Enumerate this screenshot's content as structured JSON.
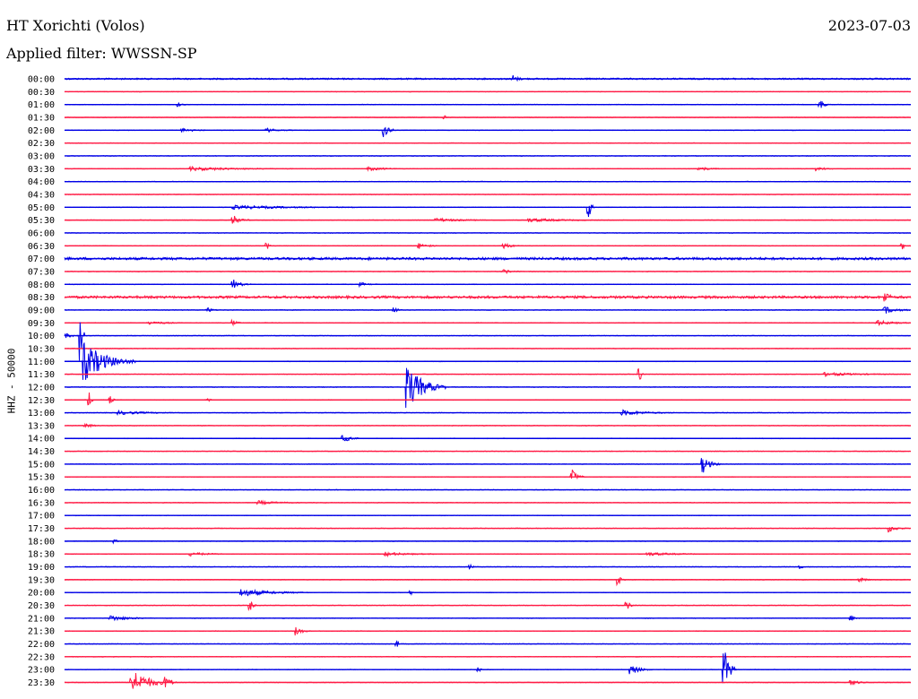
{
  "header": {
    "station": "HT Xorichti (Volos)",
    "date": "2023-07-03",
    "filter": "Applied filter: WWSSN-SP"
  },
  "chart_data": {
    "type": "line",
    "subtype": "helicorder",
    "ylabel": "HHZ - 50000",
    "colors": {
      "even": "#0000e6",
      "odd": "#ff1a44"
    },
    "lines": [
      {
        "label": "00:00",
        "events": [
          {
            "x": 0.53,
            "amp": 4,
            "dur": 0.012
          },
          {
            "x": 0.01,
            "amp": 1,
            "dur": 0.9
          }
        ]
      },
      {
        "label": "00:30",
        "events": []
      },
      {
        "label": "01:00",
        "events": [
          {
            "x": 0.135,
            "amp": 2,
            "dur": 0.01
          },
          {
            "x": 0.893,
            "amp": 7,
            "dur": 0.01
          }
        ]
      },
      {
        "label": "01:30",
        "events": [
          {
            "x": 0.45,
            "amp": 2,
            "dur": 0.004
          }
        ]
      },
      {
        "label": "02:00",
        "events": [
          {
            "x": 0.14,
            "amp": 2,
            "dur": 0.03
          },
          {
            "x": 0.24,
            "amp": 2,
            "dur": 0.03
          },
          {
            "x": 0.378,
            "amp": 11,
            "dur": 0.012
          }
        ]
      },
      {
        "label": "02:30",
        "events": []
      },
      {
        "label": "03:00",
        "events": []
      },
      {
        "label": "03:30",
        "events": [
          {
            "x": 0.15,
            "amp": 2,
            "dur": 0.12
          },
          {
            "x": 0.36,
            "amp": 2,
            "dur": 0.04
          },
          {
            "x": 0.75,
            "amp": 2,
            "dur": 0.03
          },
          {
            "x": 0.89,
            "amp": 2,
            "dur": 0.02
          }
        ]
      },
      {
        "label": "04:00",
        "events": []
      },
      {
        "label": "04:30",
        "events": []
      },
      {
        "label": "05:00",
        "events": [
          {
            "x": 0.2,
            "amp": 2,
            "dur": 0.15
          },
          {
            "x": 0.62,
            "amp": 12,
            "dur": 0.006
          }
        ]
      },
      {
        "label": "05:30",
        "events": [
          {
            "x": 0.2,
            "amp": 5,
            "dur": 0.02
          },
          {
            "x": 0.44,
            "amp": 2,
            "dur": 0.06
          },
          {
            "x": 0.55,
            "amp": 2,
            "dur": 0.08
          }
        ]
      },
      {
        "label": "06:00",
        "events": []
      },
      {
        "label": "06:30",
        "events": [
          {
            "x": 0.24,
            "amp": 3,
            "dur": 0.004
          },
          {
            "x": 0.42,
            "amp": 3,
            "dur": 0.02
          },
          {
            "x": 0.52,
            "amp": 3,
            "dur": 0.02
          },
          {
            "x": 0.99,
            "amp": 4,
            "dur": 0.004
          }
        ]
      },
      {
        "label": "07:00",
        "events": [
          {
            "x": 0.0,
            "amp": 2,
            "dur": 1.0
          }
        ]
      },
      {
        "label": "07:30",
        "events": [
          {
            "x": 0.52,
            "amp": 2,
            "dur": 0.02
          }
        ]
      },
      {
        "label": "08:00",
        "events": [
          {
            "x": 0.2,
            "amp": 5,
            "dur": 0.02
          },
          {
            "x": 0.35,
            "amp": 2,
            "dur": 0.02
          }
        ]
      },
      {
        "label": "08:30",
        "events": [
          {
            "x": 0.0,
            "amp": 2,
            "dur": 1.0
          },
          {
            "x": 0.97,
            "amp": 6,
            "dur": 0.01
          }
        ]
      },
      {
        "label": "09:00",
        "events": [
          {
            "x": 0.17,
            "amp": 3,
            "dur": 0.01
          },
          {
            "x": 0.39,
            "amp": 3,
            "dur": 0.01
          },
          {
            "x": 0.97,
            "amp": 4,
            "dur": 0.03
          }
        ]
      },
      {
        "label": "09:30",
        "events": [
          {
            "x": 0.1,
            "amp": 2,
            "dur": 0.04
          },
          {
            "x": 0.2,
            "amp": 3,
            "dur": 0.01
          },
          {
            "x": 0.96,
            "amp": 3,
            "dur": 0.04
          }
        ]
      },
      {
        "label": "10:00",
        "events": [
          {
            "x": 0.02,
            "amp": 28,
            "dur": 0.004
          },
          {
            "x": 0.0,
            "amp": 3,
            "dur": 0.02
          }
        ]
      },
      {
        "label": "10:30",
        "events": []
      },
      {
        "label": "11:00",
        "events": [
          {
            "x": 0.024,
            "amp": 22,
            "dur": 0.06
          }
        ]
      },
      {
        "label": "11:30",
        "events": [
          {
            "x": 0.68,
            "amp": 8,
            "dur": 0.004
          },
          {
            "x": 0.9,
            "amp": 2,
            "dur": 0.08
          }
        ]
      },
      {
        "label": "12:00",
        "events": [
          {
            "x": 0.406,
            "amp": 24,
            "dur": 0.045
          }
        ]
      },
      {
        "label": "12:30",
        "events": [
          {
            "x": 0.03,
            "amp": 8,
            "dur": 0.004
          },
          {
            "x": 0.055,
            "amp": 4,
            "dur": 0.006
          },
          {
            "x": 0.17,
            "amp": 2,
            "dur": 0.006
          }
        ]
      },
      {
        "label": "13:00",
        "events": [
          {
            "x": 0.065,
            "amp": 2,
            "dur": 0.07
          },
          {
            "x": 0.66,
            "amp": 3,
            "dur": 0.06
          }
        ]
      },
      {
        "label": "13:30",
        "events": [
          {
            "x": 0.025,
            "amp": 3,
            "dur": 0.015
          }
        ]
      },
      {
        "label": "14:00",
        "events": [
          {
            "x": 0.33,
            "amp": 4,
            "dur": 0.02
          }
        ]
      },
      {
        "label": "14:30",
        "events": []
      },
      {
        "label": "15:00",
        "events": [
          {
            "x": 0.755,
            "amp": 9,
            "dur": 0.02
          }
        ]
      },
      {
        "label": "15:30",
        "events": [
          {
            "x": 0.6,
            "amp": 8,
            "dur": 0.015
          }
        ]
      },
      {
        "label": "16:00",
        "events": []
      },
      {
        "label": "16:30",
        "events": [
          {
            "x": 0.23,
            "amp": 2,
            "dur": 0.05
          }
        ]
      },
      {
        "label": "17:00",
        "events": []
      },
      {
        "label": "17:30",
        "events": [
          {
            "x": 0.975,
            "amp": 4,
            "dur": 0.02
          }
        ]
      },
      {
        "label": "18:00",
        "events": [
          {
            "x": 0.06,
            "amp": 2,
            "dur": 0.004
          }
        ]
      },
      {
        "label": "18:30",
        "events": [
          {
            "x": 0.15,
            "amp": 2,
            "dur": 0.04
          },
          {
            "x": 0.38,
            "amp": 2,
            "dur": 0.06
          },
          {
            "x": 0.69,
            "amp": 2,
            "dur": 0.06
          }
        ]
      },
      {
        "label": "19:00",
        "events": [
          {
            "x": 0.48,
            "amp": 2,
            "dur": 0.004
          },
          {
            "x": 0.87,
            "amp": 2,
            "dur": 0.004
          }
        ]
      },
      {
        "label": "19:30",
        "events": [
          {
            "x": 0.655,
            "amp": 6,
            "dur": 0.008
          },
          {
            "x": 0.94,
            "amp": 2,
            "dur": 0.02
          }
        ]
      },
      {
        "label": "20:00",
        "events": [
          {
            "x": 0.21,
            "amp": 4,
            "dur": 0.08
          },
          {
            "x": 0.41,
            "amp": 2,
            "dur": 0.004
          }
        ]
      },
      {
        "label": "20:30",
        "events": [
          {
            "x": 0.22,
            "amp": 5,
            "dur": 0.008
          },
          {
            "x": 0.665,
            "amp": 4,
            "dur": 0.012
          }
        ]
      },
      {
        "label": "21:00",
        "events": [
          {
            "x": 0.055,
            "amp": 3,
            "dur": 0.05
          },
          {
            "x": 0.93,
            "amp": 3,
            "dur": 0.01
          }
        ]
      },
      {
        "label": "21:30",
        "events": [
          {
            "x": 0.275,
            "amp": 5,
            "dur": 0.015
          }
        ]
      },
      {
        "label": "22:00",
        "events": [
          {
            "x": 0.393,
            "amp": 5,
            "dur": 0.004
          }
        ]
      },
      {
        "label": "22:30",
        "events": []
      },
      {
        "label": "23:00",
        "events": [
          {
            "x": 0.67,
            "amp": 5,
            "dur": 0.025
          },
          {
            "x": 0.78,
            "amp": 22,
            "dur": 0.015
          },
          {
            "x": 0.49,
            "amp": 2,
            "dur": 0.004
          }
        ]
      },
      {
        "label": "23:30",
        "events": [
          {
            "x": 0.08,
            "amp": 14,
            "dur": 0.05
          },
          {
            "x": 0.12,
            "amp": 5,
            "dur": 0.015
          },
          {
            "x": 0.93,
            "amp": 3,
            "dur": 0.02
          }
        ]
      }
    ]
  }
}
